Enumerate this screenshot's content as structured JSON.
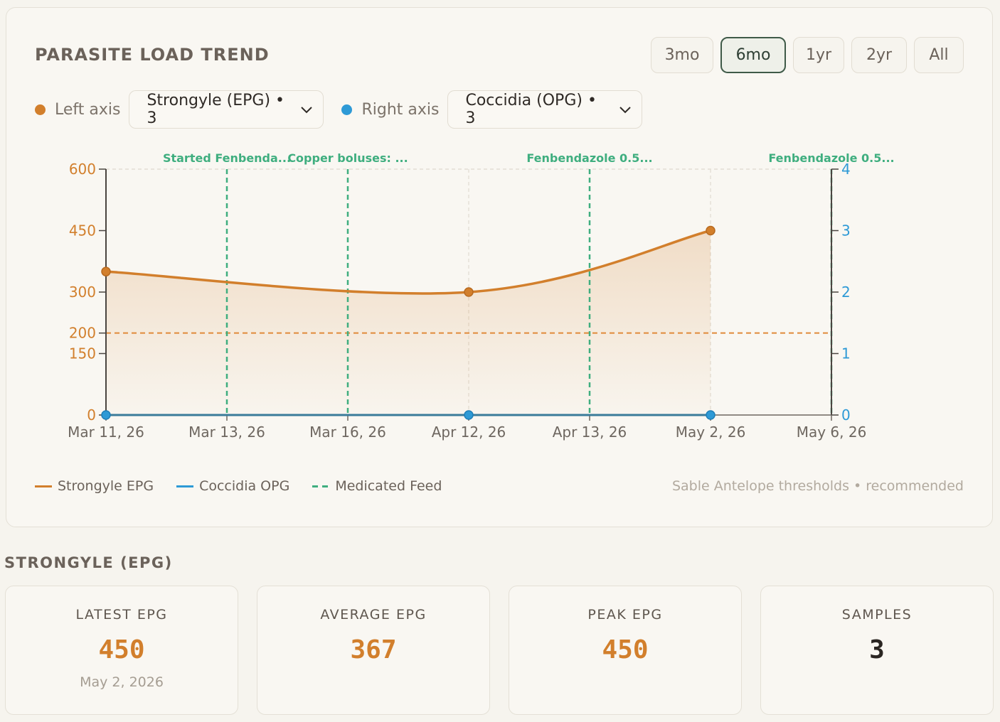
{
  "title": "PARASITE LOAD TREND",
  "ranges": [
    "3mo",
    "6mo",
    "1yr",
    "2yr",
    "All"
  ],
  "active_range": "6mo",
  "left_axis": {
    "label": "Left axis",
    "selected": "Strongyle (EPG) • 3",
    "color": "#d27f2c"
  },
  "right_axis": {
    "label": "Right axis",
    "selected": "Coccidia (OPG) • 3",
    "color": "#2e9ad6"
  },
  "chart_data": {
    "type": "line",
    "x": [
      "Mar 11, 26",
      "Mar 13, 26",
      "Mar 16, 26",
      "Apr 12, 26",
      "Apr 13, 26",
      "May 2, 26",
      "May 6, 26"
    ],
    "series": [
      {
        "name": "Strongyle EPG",
        "axis": "left",
        "color": "#d27f2c",
        "points": [
          {
            "x": "Mar 11, 26",
            "y": 350
          },
          {
            "x": "Apr 12, 26",
            "y": 300
          },
          {
            "x": "May 2, 26",
            "y": 450
          }
        ]
      },
      {
        "name": "Coccidia OPG",
        "axis": "right",
        "color": "#2e9ad6",
        "points": [
          {
            "x": "Mar 11, 26",
            "y": 0
          },
          {
            "x": "Apr 12, 26",
            "y": 0
          },
          {
            "x": "May 2, 26",
            "y": 0
          }
        ]
      }
    ],
    "left_axis": {
      "ticks": [
        0,
        150,
        200,
        300,
        450,
        600
      ],
      "ylim": [
        0,
        600
      ]
    },
    "right_axis": {
      "ticks": [
        0,
        1,
        2,
        3,
        4
      ],
      "ylim": [
        0,
        4
      ]
    },
    "threshold": {
      "value": 200,
      "axis": "left"
    },
    "events": [
      {
        "x": "Mar 13, 26",
        "label": "Started Fenbenda..."
      },
      {
        "x": "Mar 16, 26",
        "label": "Copper boluses: ..."
      },
      {
        "x": "Apr 13, 26",
        "label": "Fenbendazole 0.5..."
      },
      {
        "x": "May 6, 26",
        "label": "Fenbendazole 0.5..."
      }
    ],
    "legend": [
      "Strongyle EPG",
      "Coccidia OPG",
      "Medicated Feed"
    ],
    "note": "Sable Antelope thresholds • recommended"
  },
  "section_title": "STRONGYLE (EPG)",
  "stats": [
    {
      "label": "LATEST EPG",
      "value": "450",
      "sub": "May 2, 2026",
      "color": "#d27f2c"
    },
    {
      "label": "AVERAGE EPG",
      "value": "367",
      "sub": "",
      "color": "#d27f2c"
    },
    {
      "label": "PEAK EPG",
      "value": "450",
      "sub": "",
      "color": "#d27f2c"
    },
    {
      "label": "SAMPLES",
      "value": "3",
      "sub": "",
      "color": "#2b2622"
    }
  ]
}
